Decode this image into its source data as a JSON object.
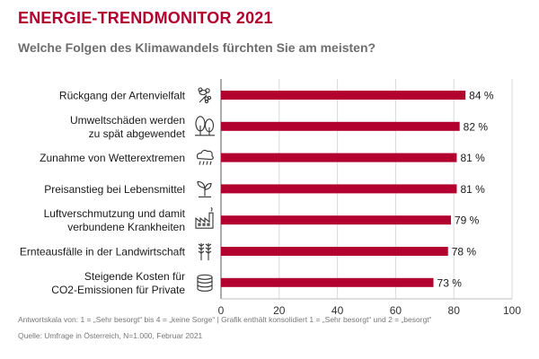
{
  "header": {
    "title": "ENERGIE-TRENDMONITOR 2021",
    "subtitle": "Welche Folgen des Klimawandels fürchten Sie am meisten?"
  },
  "footer": {
    "note": "Antwortskala von: 1 = „Sehr besorgt“ bis 4 = „keine Sorge“ | Grafik enthält konsolidiert 1 = „Sehr besorgt“ und 2 = „besorgt“",
    "source": "Quelle: Umfrage in Österreich, N=1.000, Februar 2021"
  },
  "colors": {
    "bar": "#b2002f",
    "title": "#b2002f",
    "grid": "#d9d9d9",
    "icon": "#333333"
  },
  "chart_data": {
    "type": "bar",
    "orientation": "horizontal",
    "title": "Welche Folgen des Klimawandels fürchten Sie am meisten?",
    "xlim": [
      0,
      100
    ],
    "ticks": [
      0,
      20,
      40,
      60,
      80,
      100
    ],
    "value_suffix": " %",
    "grid": true,
    "categories": [
      {
        "lines": [
          "Rückgang der Artenvielfalt"
        ],
        "value": 84,
        "icon": "bee-flower-icon"
      },
      {
        "lines": [
          "Umweltschäden werden",
          "zu spät abgewendet"
        ],
        "value": 82,
        "icon": "trees-icon"
      },
      {
        "lines": [
          "Zunahme von Wetterextremen"
        ],
        "value": 81,
        "icon": "storm-cloud-icon"
      },
      {
        "lines": [
          "Preisanstieg bei Lebensmittel"
        ],
        "value": 81,
        "icon": "sprout-icon"
      },
      {
        "lines": [
          "Luftverschmutzung und damit",
          "verbundene Krankheiten"
        ],
        "value": 79,
        "icon": "factory-icon"
      },
      {
        "lines": [
          "Ernteausfälle in der Landwirtschaft"
        ],
        "value": 78,
        "icon": "wheat-icon"
      },
      {
        "lines": [
          "Steigende Kosten für",
          "CO2-Emissionen für Private"
        ],
        "value": 73,
        "icon": "coins-icon"
      }
    ]
  }
}
